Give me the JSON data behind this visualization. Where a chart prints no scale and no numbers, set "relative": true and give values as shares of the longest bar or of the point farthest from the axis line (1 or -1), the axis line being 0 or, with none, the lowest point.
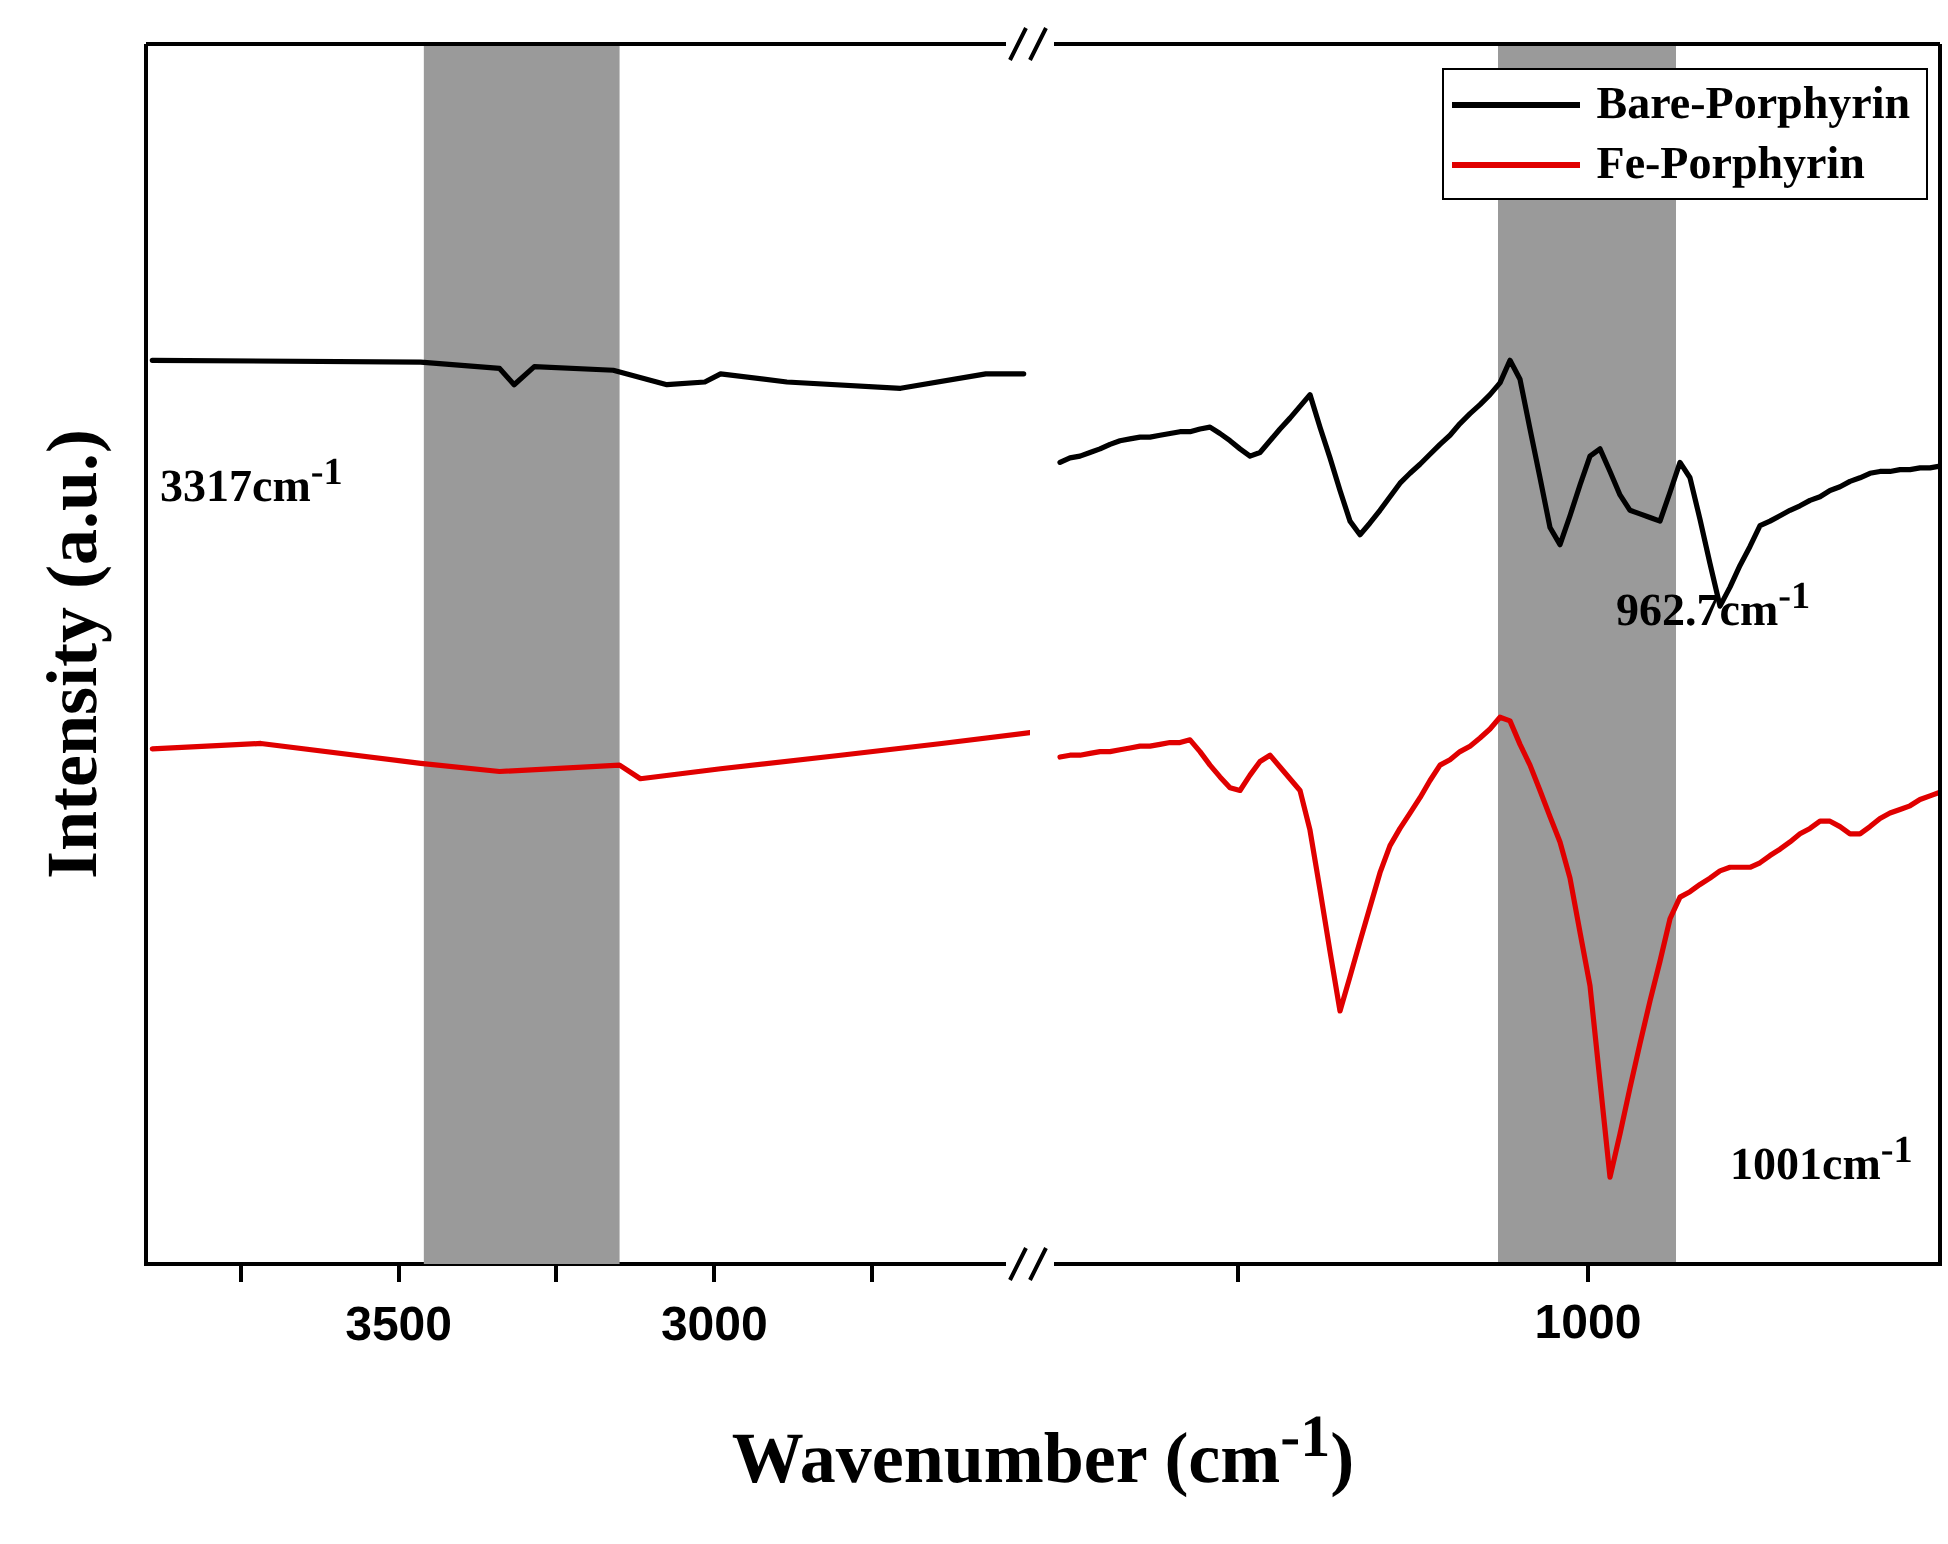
{
  "chart_data": [
    {
      "type": "line",
      "relative": true,
      "ylabel": "Intensity (a.u.)",
      "xlabel": "Wavenumber (cm$^{-1}$)",
      "xlim": [
        3900,
        2500
      ],
      "xticks": [
        {
          "value": 3750,
          "label": null
        },
        3500,
        {
          "value": 3250,
          "label": null
        },
        3000,
        {
          "value": 2750,
          "label": null
        }
      ],
      "bands": [
        {
          "axis": "x",
          "from": 3460,
          "to": 3150,
          "color": "#9a9a9a"
        }
      ],
      "annotations": [
        "3317cm$^{-1}$"
      ],
      "series": [
        {
          "color": "#000000",
          "x": [
            3890,
            3465,
            3340,
            3317,
            3285,
            3160,
            3075,
            3015,
            2990,
            2885,
            2705,
            2570,
            2510
          ],
          "values": [
            1.0,
            0.998,
            0.991,
            0.973,
            0.993,
            0.989,
            0.973,
            0.976,
            0.985,
            0.976,
            0.969,
            0.985,
            0.985
          ]
        },
        {
          "color": "#e00000",
          "x": [
            3890,
            3718,
            3465,
            3340,
            3150,
            3117,
            2990,
            2800,
            2640,
            2500
          ],
          "values": [
            0.57,
            0.576,
            0.554,
            0.545,
            0.552,
            0.537,
            0.548,
            0.563,
            0.576,
            0.588
          ]
        }
      ]
    },
    {
      "type": "line",
      "relative": true,
      "legend": "top right",
      "categories": [
        null,
        null,
        null,
        null,
        null,
        null,
        null,
        null,
        null,
        null,
        null,
        null,
        null,
        null,
        null,
        null,
        null,
        null,
        null,
        null,
        null,
        null,
        null,
        null,
        null,
        null,
        null,
        null,
        null,
        null,
        null,
        null,
        null,
        null,
        null,
        null,
        null,
        null,
        null,
        null,
        null,
        null,
        null,
        null,
        null,
        null,
        null,
        null,
        null,
        null,
        null,
        null,
        null,
        null,
        null,
        null,
        null,
        null,
        null,
        null,
        null,
        null,
        null,
        null,
        null,
        null,
        null,
        null,
        null,
        null,
        null,
        null,
        null,
        null,
        null,
        null,
        null,
        null,
        null,
        null,
        null,
        null,
        null,
        null,
        null,
        null,
        null,
        null,
        null
      ],
      "annotations": [
        "962.7cm$^{-1}$",
        "1001cm$^{-1}$",
        "1000"
      ],
      "series": [
        {
          "name": "Bare-Porphyrin",
          "color": "#000000",
          "values": [
            0.887,
            0.892,
            0.894,
            0.898,
            0.902,
            0.907,
            0.911,
            0.913,
            0.915,
            0.915,
            0.917,
            0.919,
            0.921,
            0.921,
            0.924,
            0.926,
            0.919,
            0.911,
            0.902,
            0.894,
            0.898,
            0.911,
            0.924,
            0.936,
            0.949,
            0.962,
            0.926,
            0.892,
            0.856,
            0.822,
            0.807,
            0.82,
            0.834,
            0.849,
            0.864,
            0.875,
            0.885,
            0.896,
            0.907,
            0.917,
            0.93,
            0.941,
            0.951,
            0.962,
            0.975,
            1.0,
            0.979,
            0.924,
            0.87,
            0.815,
            0.796,
            0.828,
            0.862,
            0.894,
            0.902,
            0.877,
            0.851,
            0.834,
            0.83,
            0.826,
            0.822,
            0.854,
            0.887,
            0.87,
            0.824,
            0.775,
            0.728,
            0.749,
            0.773,
            0.794,
            0.817,
            0.822,
            0.828,
            0.834,
            0.839,
            0.845,
            0.849,
            0.856,
            0.86,
            0.866,
            0.87,
            0.875,
            0.877,
            0.877,
            0.879,
            0.879,
            0.881,
            0.881,
            0.883
          ]
        },
        {
          "name": "Fe-Porphyrin",
          "color": "#e00000",
          "values": [
            0.561,
            0.563,
            0.563,
            0.565,
            0.567,
            0.567,
            0.569,
            0.571,
            0.573,
            0.573,
            0.575,
            0.577,
            0.577,
            0.58,
            0.567,
            0.552,
            0.539,
            0.527,
            0.524,
            0.541,
            0.556,
            0.563,
            0.55,
            0.537,
            0.524,
            0.48,
            0.414,
            0.346,
            0.28,
            0.318,
            0.357,
            0.395,
            0.433,
            0.463,
            0.482,
            0.499,
            0.516,
            0.535,
            0.552,
            0.558,
            0.567,
            0.573,
            0.582,
            0.592,
            0.605,
            0.601,
            0.575,
            0.552,
            0.524,
            0.495,
            0.467,
            0.427,
            0.367,
            0.308,
            0.202,
            0.096,
            0.144,
            0.195,
            0.244,
            0.291,
            0.335,
            0.382,
            0.406,
            0.412,
            0.42,
            0.427,
            0.435,
            0.439,
            0.439,
            0.439,
            0.444,
            0.452,
            0.459,
            0.467,
            0.476,
            0.482,
            0.49,
            0.49,
            0.484,
            0.476,
            0.476,
            0.484,
            0.493,
            0.499,
            0.503,
            0.507,
            0.514,
            0.518,
            0.522
          ]
        }
      ]
    }
  ]
}
